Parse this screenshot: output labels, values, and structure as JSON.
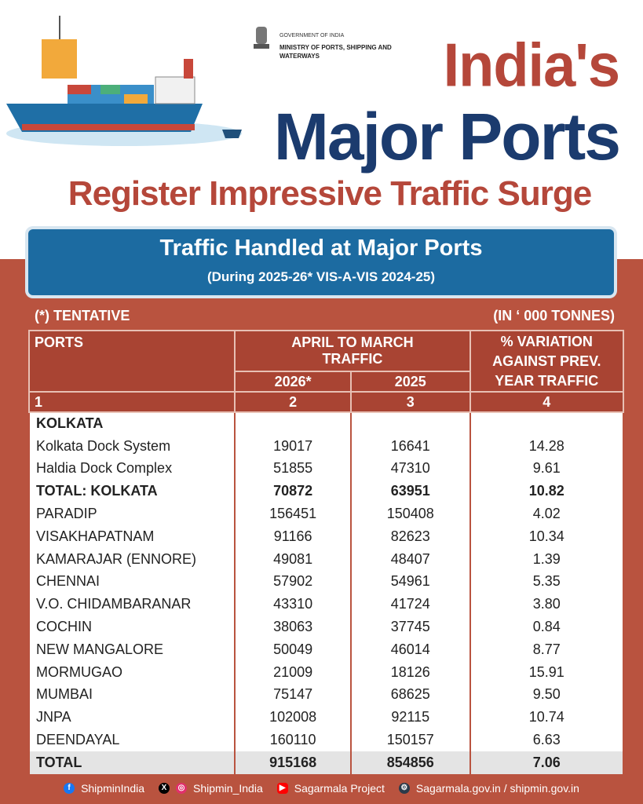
{
  "header": {
    "gov": "GOVERNMENT OF INDIA",
    "ministry": "MINISTRY OF PORTS, SHIPPING AND WATERWAYS",
    "title_line1": "India's",
    "title_line2": "Major Ports",
    "subtitle": "Register Impressive Traffic Surge"
  },
  "banner": {
    "title": "Traffic Handled at Major Ports",
    "subtitle": "(During 2025-26* VIS-A-VIS 2024-25)"
  },
  "notes": {
    "left": "(*) TENTATIVE",
    "right": "(IN ‘ 000 TONNES)"
  },
  "table": {
    "headers": {
      "ports": "PORTS",
      "traffic": "APRIL TO MARCH TRAFFIC",
      "y1": "2026*",
      "y2": "2025",
      "variation": "% VARIATION AGAINST PREV. YEAR TRAFFIC"
    },
    "col_numbers": [
      "1",
      "2",
      "3",
      "4"
    ],
    "rows": [
      {
        "port": "KOLKATA",
        "v2026": "",
        "v2025": "",
        "pct": ""
      },
      {
        "port": "Kolkata Dock System",
        "v2026": "19017",
        "v2025": "16641",
        "pct": "14.28"
      },
      {
        "port": "Haldia Dock Complex",
        "v2026": "51855",
        "v2025": "47310",
        "pct": "9.61"
      },
      {
        "port": "TOTAL: KOLKATA",
        "v2026": "70872",
        "v2025": "63951",
        "pct": "10.82"
      },
      {
        "port": "PARADIP",
        "v2026": "156451",
        "v2025": "150408",
        "pct": "4.02"
      },
      {
        "port": "VISAKHAPATNAM",
        "v2026": "91166",
        "v2025": "82623",
        "pct": "10.34"
      },
      {
        "port": "KAMARAJAR (ENNORE)",
        "v2026": "49081",
        "v2025": "48407",
        "pct": "1.39"
      },
      {
        "port": "CHENNAI",
        "v2026": "57902",
        "v2025": "54961",
        "pct": "5.35"
      },
      {
        "port": "V.O. CHIDAMBARANAR",
        "v2026": "43310",
        "v2025": "41724",
        "pct": "3.80"
      },
      {
        "port": "COCHIN",
        "v2026": "38063",
        "v2025": "37745",
        "pct": "0.84"
      },
      {
        "port": "NEW MANGALORE",
        "v2026": "50049",
        "v2025": "46014",
        "pct": "8.77"
      },
      {
        "port": "MORMUGAO",
        "v2026": "21009",
        "v2025": "18126",
        "pct": "15.91"
      },
      {
        "port": "MUMBAI",
        "v2026": "75147",
        "v2025": "68625",
        "pct": "9.50"
      },
      {
        "port": "JNPA",
        "v2026": "102008",
        "v2025": "92115",
        "pct": "10.74"
      },
      {
        "port": "DEENDAYAL",
        "v2026": "160110",
        "v2025": "150157",
        "pct": "6.63"
      }
    ],
    "total": {
      "port": "TOTAL",
      "v2026": "915168",
      "v2025": "854856",
      "pct": "7.06"
    }
  },
  "footer": {
    "facebook": "ShipminIndia",
    "x_instagram": "Shipmin_India",
    "youtube": "Sagarmala Project",
    "web": "Sagarmala.gov.in / shipmin.gov.in"
  }
}
